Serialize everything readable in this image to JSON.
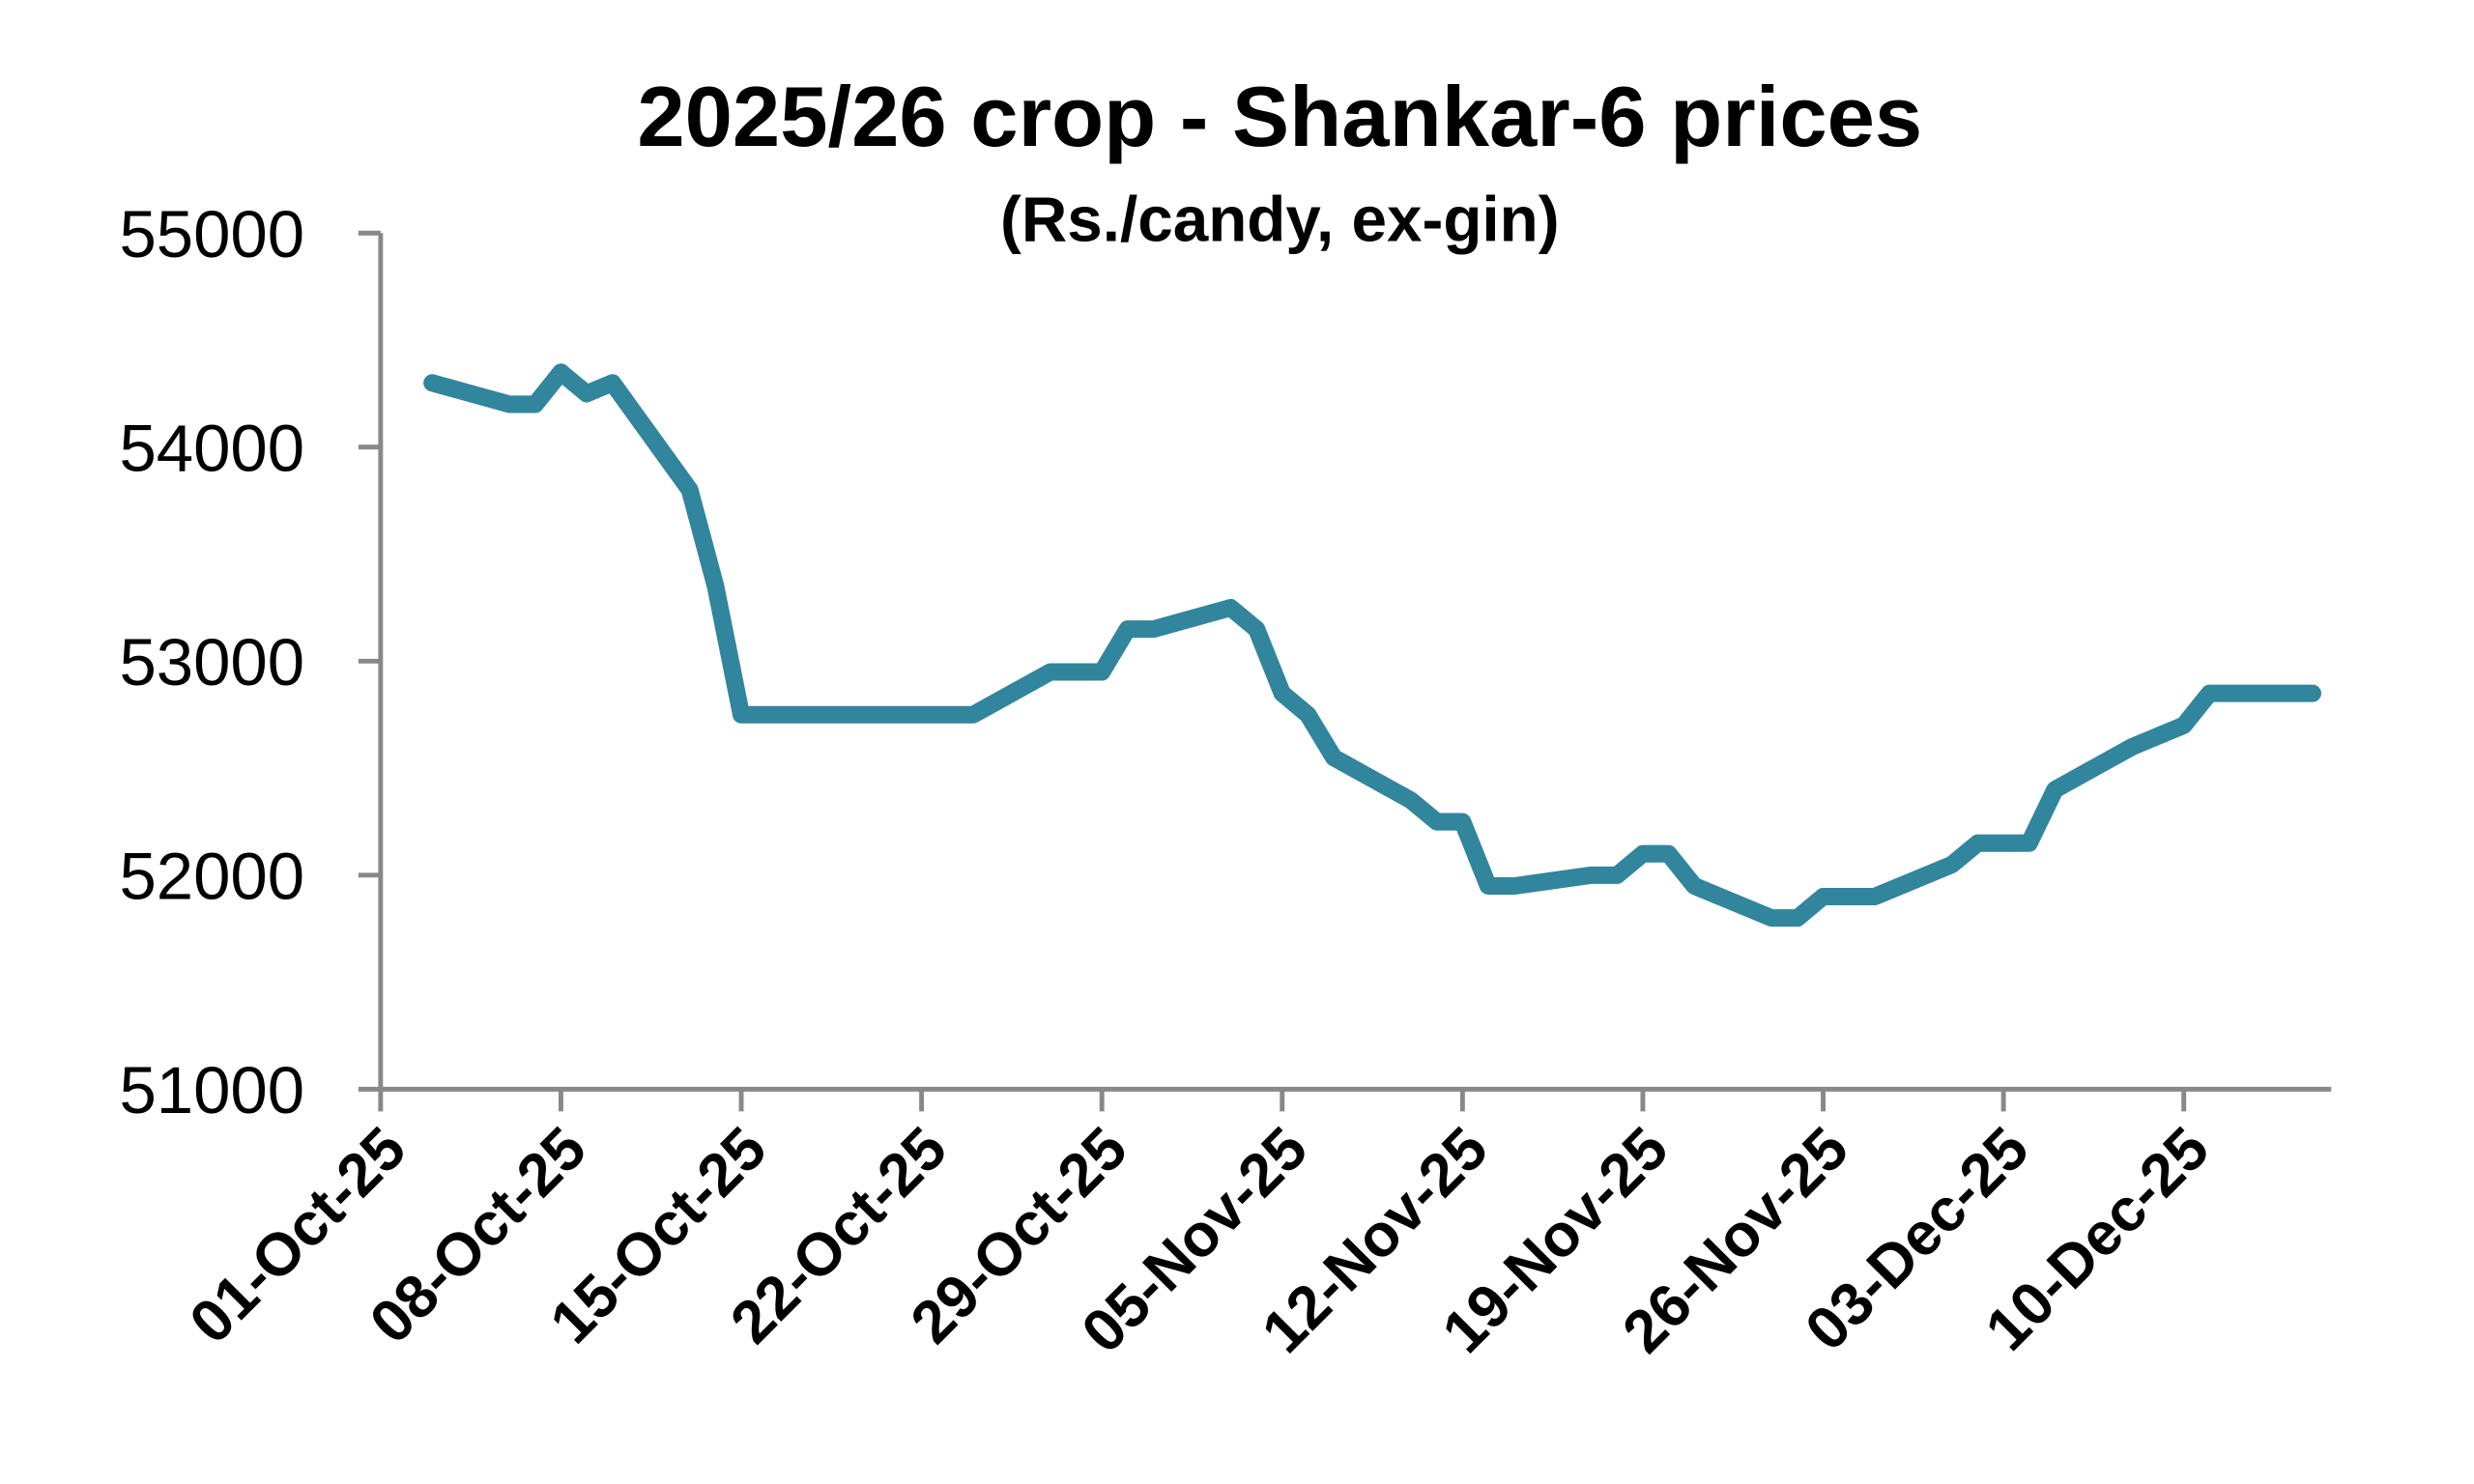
{
  "chart_data": {
    "type": "line",
    "title": "2025/26 crop - Shankar-6 prices",
    "subtitle": "(Rs./candy, ex-gin)",
    "xlabel": "",
    "ylabel": "",
    "ylim": [
      51000,
      55000
    ],
    "yticks": [
      "55000",
      "54000",
      "53000",
      "52000",
      "51000"
    ],
    "ytick_values": [
      55000,
      54000,
      53000,
      52000,
      51000
    ],
    "xlim": [
      "2025-10-01",
      "2025-12-16"
    ],
    "xticks": [
      "01-Oct-25",
      "08-Oct-25",
      "15-Oct-25",
      "22-Oct-25",
      "29-Oct-25",
      "05-Nov-25",
      "12-Nov-25",
      "19-Nov-25",
      "26-Nov-25",
      "03-Dec-25",
      "10-Dec-25"
    ],
    "xtick_dates": [
      "2025-10-01",
      "2025-10-08",
      "2025-10-15",
      "2025-10-22",
      "2025-10-29",
      "2025-11-05",
      "2025-11-12",
      "2025-11-19",
      "2025-11-26",
      "2025-12-03",
      "2025-12-10"
    ],
    "grid": false,
    "legend": "none",
    "color": "#31859c",
    "series": [
      {
        "name": "Shankar-6",
        "x": [
          "2025-10-03",
          "2025-10-06",
          "2025-10-07",
          "2025-10-08",
          "2025-10-09",
          "2025-10-10",
          "2025-10-13",
          "2025-10-14",
          "2025-10-15",
          "2025-10-24",
          "2025-10-27",
          "2025-10-29",
          "2025-10-30",
          "2025-10-31",
          "2025-11-03",
          "2025-11-04",
          "2025-11-05",
          "2025-11-06",
          "2025-11-07",
          "2025-11-10",
          "2025-11-11",
          "2025-11-12",
          "2025-11-13",
          "2025-11-14",
          "2025-11-17",
          "2025-11-18",
          "2025-11-19",
          "2025-11-20",
          "2025-11-21",
          "2025-11-24",
          "2025-11-25",
          "2025-11-26",
          "2025-11-28",
          "2025-12-01",
          "2025-12-02",
          "2025-12-04",
          "2025-12-05",
          "2025-12-08",
          "2025-12-10",
          "2025-12-11",
          "2025-12-15"
        ],
        "values": [
          54300,
          54200,
          54200,
          54350,
          54250,
          54300,
          53800,
          53350,
          52750,
          52750,
          52950,
          52950,
          53150,
          53150,
          53250,
          53150,
          52850,
          52750,
          52550,
          52350,
          52250,
          52250,
          51950,
          51950,
          52000,
          52000,
          52100,
          52100,
          51950,
          51800,
          51800,
          51900,
          51900,
          52050,
          52150,
          52150,
          52400,
          52600,
          52700,
          52850,
          52850
        ]
      }
    ]
  }
}
